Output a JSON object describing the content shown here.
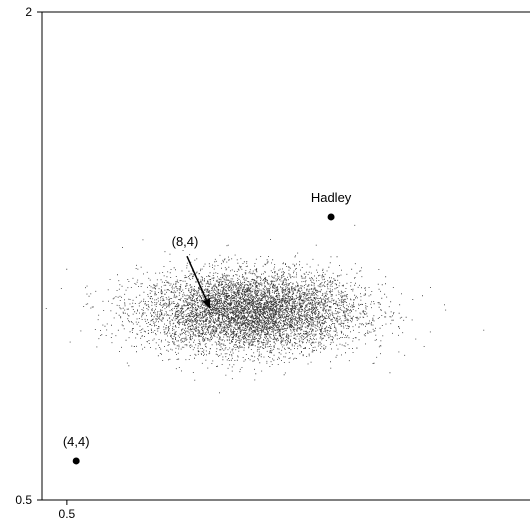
{
  "chart_data": {
    "type": "scatter",
    "title": "",
    "xlabel": "",
    "ylabel": "",
    "x_ticks": [
      {
        "value": 0.5,
        "label": "0.5"
      }
    ],
    "y_ticks": [
      {
        "value": 2,
        "label": "2"
      },
      {
        "value": 0.5,
        "label": "0.5"
      }
    ],
    "xlim": [
      0.42,
      1.99
    ],
    "ylim": [
      0.5,
      2.0
    ],
    "grid": false,
    "cloud": {
      "center_x": 1.09,
      "center_y": 1.08,
      "spread_x": 0.175,
      "spread_y": 0.062,
      "approx_points": 22000
    },
    "points": [
      {
        "x": 0.53,
        "y": 0.62,
        "label": "(4,4)"
      },
      {
        "x": 1.35,
        "y": 1.37,
        "label": "Hadley"
      }
    ],
    "annotations": [
      {
        "text": "(8,4)",
        "label_x": 0.88,
        "label_y": 1.28,
        "arrow_to_x": 0.96,
        "arrow_to_y": 1.09
      }
    ]
  }
}
